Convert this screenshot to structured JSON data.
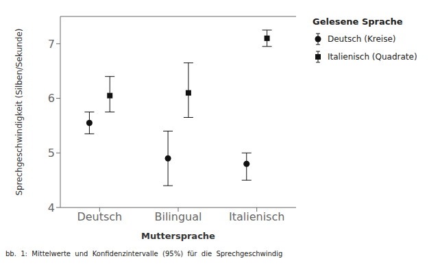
{
  "chart_data": {
    "type": "scatter",
    "categories": [
      "Deutsch",
      "Bilingual",
      "Italienisch"
    ],
    "xlabel": "Muttersprache",
    "ylabel": "Sprechgeschwindigkeit (Silben/Sekunde)",
    "legend_title": "Gelesene Sprache",
    "annotations": [
      "bb.  1:  Mittelwerte  und  Konfidenzintervalle  (95%)  für  die  Sprechgeschwindig"
    ],
    "series": [
      {
        "name": "Deutsch (Kreise)",
        "color": "#111111",
        "marker": "circle",
        "values": [
          5.55,
          4.9,
          4.8
        ],
        "ci_low": [
          5.35,
          4.4,
          4.5
        ],
        "ci_high": [
          5.75,
          5.4,
          5.0
        ]
      },
      {
        "name": "Italienisch (Quadrate)",
        "color": "#111111",
        "marker": "square",
        "values": [
          6.05,
          6.1,
          7.1
        ],
        "ci_low": [
          5.75,
          5.65,
          6.95
        ],
        "ci_high": [
          6.4,
          6.65,
          7.25
        ]
      }
    ],
    "ylim": [
      4.0,
      7.5
    ],
    "yticks": [
      4.0,
      5.0,
      6.0,
      7.0
    ],
    "grid": false,
    "legend": "right"
  }
}
